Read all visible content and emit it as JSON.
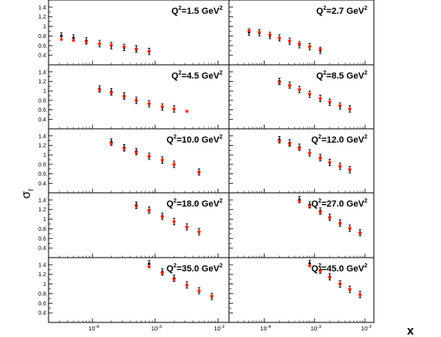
{
  "chart_data": {
    "type": "scatter",
    "ylabel_main": "σ",
    "ylabel_sub": "r",
    "xlabel": "x",
    "x_scale": "log",
    "xlim": [
      2e-05,
      0.015
    ],
    "ylim": [
      0.2,
      1.55
    ],
    "y_ticks": [
      "0.4",
      "0.6",
      "0.8",
      "1",
      "1.2",
      "1.4"
    ],
    "x_ticks": [
      {
        "base": "10",
        "exp": "-4"
      },
      {
        "base": "10",
        "exp": "-3"
      },
      {
        "base": "10",
        "exp": "-2"
      }
    ],
    "series_colors": {
      "data": "#000000",
      "model": "#ff2200"
    },
    "panels": [
      {
        "q2_label": "Q",
        "q2_value": "=1.5 GeV",
        "data": {
          "x": [
            3.2e-05,
            5e-05,
            8e-05,
            0.00013,
            0.0002,
            0.00032,
            0.0005,
            0.0008
          ],
          "y": [
            0.8,
            0.76,
            0.7,
            0.64,
            0.6,
            0.56,
            0.53,
            0.48
          ]
        },
        "model": {
          "x": [
            3.2e-05,
            5e-05,
            8e-05,
            0.00013,
            0.0002,
            0.00032,
            0.0005,
            0.0008
          ],
          "y": [
            0.73,
            0.71,
            0.68,
            0.64,
            0.61,
            0.57,
            0.52,
            0.48
          ]
        }
      },
      {
        "q2_label": "Q",
        "q2_value": "=2.7 GeV",
        "data": {
          "x": [
            5e-05,
            8e-05,
            0.00013,
            0.0002,
            0.00032,
            0.0005,
            0.0008,
            0.0013
          ],
          "y": [
            0.88,
            0.87,
            0.81,
            0.76,
            0.69,
            0.62,
            0.58,
            0.5
          ]
        },
        "model": {
          "x": [
            5e-05,
            8e-05,
            0.00013,
            0.0002,
            0.00032,
            0.0005,
            0.0008,
            0.0013
          ],
          "y": [
            0.91,
            0.88,
            0.83,
            0.76,
            0.7,
            0.64,
            0.58,
            0.53
          ]
        }
      },
      {
        "q2_label": "Q",
        "q2_value": "=4.5 GeV",
        "data": {
          "x": [
            0.00013,
            0.0002,
            0.00032,
            0.0005,
            0.0008,
            0.0013,
            0.002
          ],
          "y": [
            1.04,
            0.98,
            0.89,
            0.8,
            0.73,
            0.66,
            0.62
          ]
        },
        "model": {
          "x": [
            0.00013,
            0.0002,
            0.00032,
            0.0005,
            0.0008,
            0.0013,
            0.002,
            0.0032
          ],
          "y": [
            1.02,
            0.96,
            0.88,
            0.8,
            0.73,
            0.67,
            0.62,
            0.57
          ]
        }
      },
      {
        "q2_label": "Q",
        "q2_value": "=8.5 GeV",
        "data": {
          "x": [
            0.0002,
            0.00032,
            0.0005,
            0.0008,
            0.0013,
            0.002,
            0.0032,
            0.005
          ],
          "y": [
            1.2,
            1.12,
            1.03,
            0.93,
            0.84,
            0.76,
            0.68,
            0.62
          ]
        },
        "model": {
          "x": [
            0.0002,
            0.00032,
            0.0005,
            0.0008,
            0.0013,
            0.002,
            0.0032,
            0.005
          ],
          "y": [
            1.18,
            1.11,
            1.03,
            0.94,
            0.84,
            0.77,
            0.69,
            0.62
          ]
        }
      },
      {
        "q2_label": "Q",
        "q2_value": "=10.0 GeV",
        "data": {
          "x": [
            0.0002,
            0.00032,
            0.0005,
            0.0008,
            0.0013,
            0.002,
            0.005
          ],
          "y": [
            1.27,
            1.15,
            1.07,
            0.97,
            0.89,
            0.8,
            0.64
          ]
        },
        "model": {
          "x": [
            0.0002,
            0.00032,
            0.0005,
            0.0008,
            0.0013,
            0.002,
            0.005
          ],
          "y": [
            1.24,
            1.13,
            1.05,
            0.97,
            0.89,
            0.8,
            0.63
          ]
        }
      },
      {
        "q2_label": "Q",
        "q2_value": "=12.0 GeV",
        "data": {
          "x": [
            0.0002,
            0.00032,
            0.0005,
            0.0008,
            0.0013,
            0.002,
            0.0032,
            0.005
          ],
          "y": [
            1.32,
            1.25,
            1.16,
            1.04,
            0.94,
            0.84,
            0.76,
            0.69
          ]
        },
        "model": {
          "x": [
            0.0002,
            0.00032,
            0.0005,
            0.0008,
            0.0013,
            0.002,
            0.0032,
            0.005
          ],
          "y": [
            1.29,
            1.23,
            1.14,
            1.04,
            0.93,
            0.84,
            0.76,
            0.69
          ]
        }
      },
      {
        "q2_label": "Q",
        "q2_value": "=18.0 GeV",
        "data": {
          "x": [
            0.0005,
            0.0008,
            0.0013,
            0.002,
            0.0032,
            0.005
          ],
          "y": [
            1.29,
            1.19,
            1.06,
            0.95,
            0.84,
            0.74
          ]
        },
        "model": {
          "x": [
            0.0005,
            0.0008,
            0.0013,
            0.002,
            0.0032,
            0.005
          ],
          "y": [
            1.27,
            1.18,
            1.05,
            0.95,
            0.84,
            0.74
          ]
        }
      },
      {
        "q2_label": "Q",
        "q2_value": "=27.0 GeV",
        "data": {
          "x": [
            0.0005,
            0.0008,
            0.0013,
            0.002,
            0.0032,
            0.005,
            0.008
          ],
          "y": [
            1.41,
            1.3,
            1.17,
            1.04,
            0.92,
            0.81,
            0.72
          ]
        },
        "model": {
          "x": [
            0.0005,
            0.0008,
            0.0013,
            0.002,
            0.0032,
            0.005,
            0.008
          ],
          "y": [
            1.38,
            1.27,
            1.15,
            1.03,
            0.91,
            0.81,
            0.71
          ]
        }
      },
      {
        "q2_label": "Q",
        "q2_value": "=35.0 GeV",
        "data": {
          "x": [
            0.0008,
            0.0013,
            0.002,
            0.0032,
            0.005,
            0.008
          ],
          "y": [
            1.42,
            1.25,
            1.12,
            0.98,
            0.86,
            0.74
          ]
        },
        "model": {
          "x": [
            0.0008,
            0.0013,
            0.002,
            0.0032,
            0.005,
            0.008
          ],
          "y": [
            1.36,
            1.23,
            1.1,
            0.98,
            0.86,
            0.75
          ]
        }
      },
      {
        "q2_label": "Q",
        "q2_value": "=45.0 GeV",
        "data": {
          "x": [
            0.0008,
            0.0013,
            0.002,
            0.0032,
            0.005,
            0.008
          ],
          "y": [
            1.43,
            1.29,
            1.15,
            1.0,
            0.89,
            0.78
          ]
        },
        "model": {
          "x": [
            0.0008,
            0.0013,
            0.002,
            0.0032,
            0.005,
            0.008
          ],
          "y": [
            1.38,
            1.27,
            1.14,
            1.01,
            0.89,
            0.78
          ]
        }
      }
    ]
  }
}
